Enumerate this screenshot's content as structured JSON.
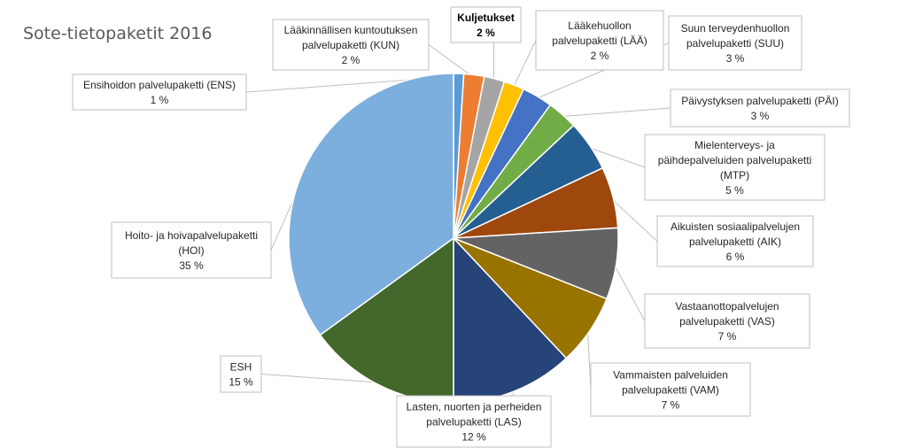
{
  "chart_data": {
    "type": "pie",
    "title": "Sote-tietopaketit 2016",
    "slices": [
      {
        "key": "ENS",
        "lines": [
          "Ensihoidon palvelupaketti (ENS)",
          "1 %"
        ],
        "value": 1,
        "color": "#5b9bd5"
      },
      {
        "key": "KUN",
        "lines": [
          "Lääkinnällisen kuntoutuksen",
          "palvelupaketti (KUN)",
          "2 %"
        ],
        "value": 2,
        "color": "#ed7d31"
      },
      {
        "key": "KUL",
        "lines": [
          "Kuljetukset",
          "2 %"
        ],
        "value": 2,
        "color": "#a5a5a5",
        "bold": true
      },
      {
        "key": "LAA",
        "lines": [
          "Lääkehuollon",
          "palvelupaketti (LÄÄ)",
          "2 %"
        ],
        "value": 2,
        "color": "#ffc000"
      },
      {
        "key": "SUU",
        "lines": [
          "Suun terveydenhuollon",
          "palvelupaketti (SUU)",
          "3 %"
        ],
        "value": 3,
        "color": "#4472c4"
      },
      {
        "key": "PAI",
        "lines": [
          "Päivystyksen palvelupaketti (PÄI)",
          "3 %"
        ],
        "value": 3,
        "color": "#70ad47"
      },
      {
        "key": "MTP",
        "lines": [
          "Mielenterveys- ja",
          "päihdepalveluiden palvelupaketti",
          "(MTP)",
          "5 %"
        ],
        "value": 5,
        "color": "#255e91"
      },
      {
        "key": "AIK",
        "lines": [
          "Aikuisten sosiaalipalvelujen",
          "palvelupaketti (AIK)",
          "6 %"
        ],
        "value": 6,
        "color": "#9e480e"
      },
      {
        "key": "VAS",
        "lines": [
          "Vastaanottopalvelujen",
          "palvelupaketti (VAS)",
          "7 %"
        ],
        "value": 7,
        "color": "#636363"
      },
      {
        "key": "VAM",
        "lines": [
          "Vammaisten palveluiden",
          "palvelupaketti (VAM)",
          "7 %"
        ],
        "value": 7,
        "color": "#997300"
      },
      {
        "key": "LAS",
        "lines": [
          "Lasten, nuorten ja perheiden",
          "palvelupaketti (LAS)",
          "12 %"
        ],
        "value": 12,
        "color": "#264478"
      },
      {
        "key": "ESH",
        "lines": [
          "ESH",
          "15 %"
        ],
        "value": 15,
        "color": "#43682b"
      },
      {
        "key": "HOI",
        "lines": [
          "Hoito- ja hoivapalvelupaketti",
          "(HOI)",
          "35 %"
        ],
        "value": 35,
        "color": "#7cafdd"
      }
    ]
  }
}
